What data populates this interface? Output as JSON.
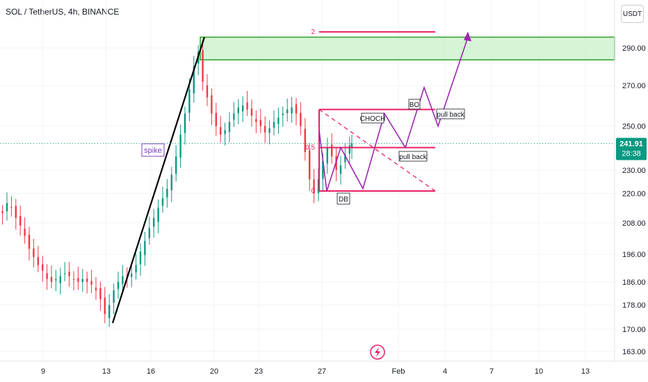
{
  "header": {
    "title": "SOL / TetherUS, 4h, BINANCE",
    "currency": "USDT"
  },
  "price_tag": {
    "price": "241.91",
    "countdown": "28:38",
    "color": "#089981"
  },
  "colors": {
    "up": "#089981",
    "down": "#f23645",
    "annotation": "#e91e63",
    "path": "#9c27b0",
    "zone_fill": "#c8f0c8",
    "zone_border": "#2e9e2e",
    "spike_line": "#000000"
  },
  "chart_data": {
    "type": "candlestick",
    "symbol": "SOL / TetherUS",
    "interval": "4h",
    "exchange": "BINANCE",
    "y_axis": {
      "scale": "log",
      "ticks": [
        163,
        170,
        178,
        186,
        196,
        208,
        220,
        230,
        250,
        270,
        290
      ],
      "tick_labels": [
        "163.00",
        "170.00",
        "178.00",
        "186.00",
        "196.00",
        "208.00",
        "220.00",
        "230.00",
        "250.00",
        "270.00",
        "290.00"
      ],
      "range": [
        160,
        306
      ]
    },
    "x_axis": {
      "tick_labels": [
        "9",
        "13",
        "16",
        "20",
        "23",
        "27",
        "Feb",
        "4",
        "7",
        "10",
        "13"
      ]
    },
    "last_price": 241.91,
    "candles_close_path": [
      [
        8,
        212
      ],
      [
        10,
        216
      ],
      [
        12,
        214
      ],
      [
        14,
        210
      ],
      [
        16,
        207
      ],
      [
        18,
        203
      ],
      [
        20,
        198
      ],
      [
        22,
        195
      ],
      [
        24,
        192
      ],
      [
        26,
        190
      ],
      [
        28,
        187
      ],
      [
        30,
        186
      ],
      [
        32,
        187
      ],
      [
        34,
        188
      ],
      [
        36,
        189
      ],
      [
        38,
        188
      ],
      [
        40,
        187
      ],
      [
        42,
        186
      ],
      [
        44,
        187
      ],
      [
        46,
        186
      ],
      [
        48,
        185
      ],
      [
        50,
        183
      ],
      [
        52,
        180
      ],
      [
        54,
        175
      ],
      [
        56,
        178
      ],
      [
        58,
        183
      ],
      [
        60,
        186
      ],
      [
        62,
        188
      ],
      [
        64,
        188
      ],
      [
        66,
        189
      ],
      [
        68,
        192
      ],
      [
        70,
        197
      ],
      [
        72,
        201
      ],
      [
        74,
        206
      ],
      [
        76,
        210
      ],
      [
        78,
        214
      ],
      [
        80,
        218
      ],
      [
        82,
        222
      ],
      [
        84,
        228
      ],
      [
        86,
        236
      ],
      [
        88,
        246
      ],
      [
        90,
        256
      ],
      [
        92,
        268
      ],
      [
        94,
        280
      ],
      [
        96,
        288
      ],
      [
        98,
        272
      ],
      [
        100,
        264
      ],
      [
        102,
        256
      ],
      [
        104,
        250
      ],
      [
        106,
        246
      ],
      [
        108,
        248
      ],
      [
        110,
        252
      ],
      [
        112,
        256
      ],
      [
        114,
        259
      ],
      [
        116,
        260
      ],
      [
        118,
        258
      ],
      [
        120,
        255
      ],
      [
        122,
        252
      ],
      [
        124,
        250
      ],
      [
        126,
        247
      ],
      [
        128,
        249
      ],
      [
        130,
        252
      ],
      [
        132,
        254
      ],
      [
        134,
        256
      ],
      [
        136,
        258
      ],
      [
        138,
        259
      ],
      [
        140,
        256
      ],
      [
        142,
        250
      ],
      [
        144,
        238
      ],
      [
        146,
        226
      ],
      [
        148,
        220
      ],
      [
        150,
        226
      ],
      [
        152,
        234
      ],
      [
        154,
        240
      ],
      [
        156,
        236
      ],
      [
        158,
        230
      ],
      [
        160,
        232
      ],
      [
        162,
        237
      ],
      [
        164,
        241
      ],
      [
        165,
        241.91
      ]
    ],
    "annotations": {
      "supply_zone": {
        "from": 283.5,
        "to": 296,
        "label": ""
      },
      "spike": {
        "label": "spike",
        "from_price": 172,
        "to_price": 296
      },
      "fib_levels": [
        {
          "label": "2",
          "price": 299
        },
        {
          "label": "0.5",
          "price": 240
        },
        {
          "label": "0",
          "price": 221
        }
      ],
      "choch_level": {
        "label": "CHOCH",
        "price": 258
      },
      "pattern_labels": [
        "DB",
        "BO",
        "pull back",
        "pull back"
      ],
      "projection_path": [
        248,
        221,
        240,
        222,
        256,
        240,
        269,
        250,
        296
      ],
      "trendline_dashed": {
        "from_price": 258,
        "to_price": 221
      }
    }
  }
}
